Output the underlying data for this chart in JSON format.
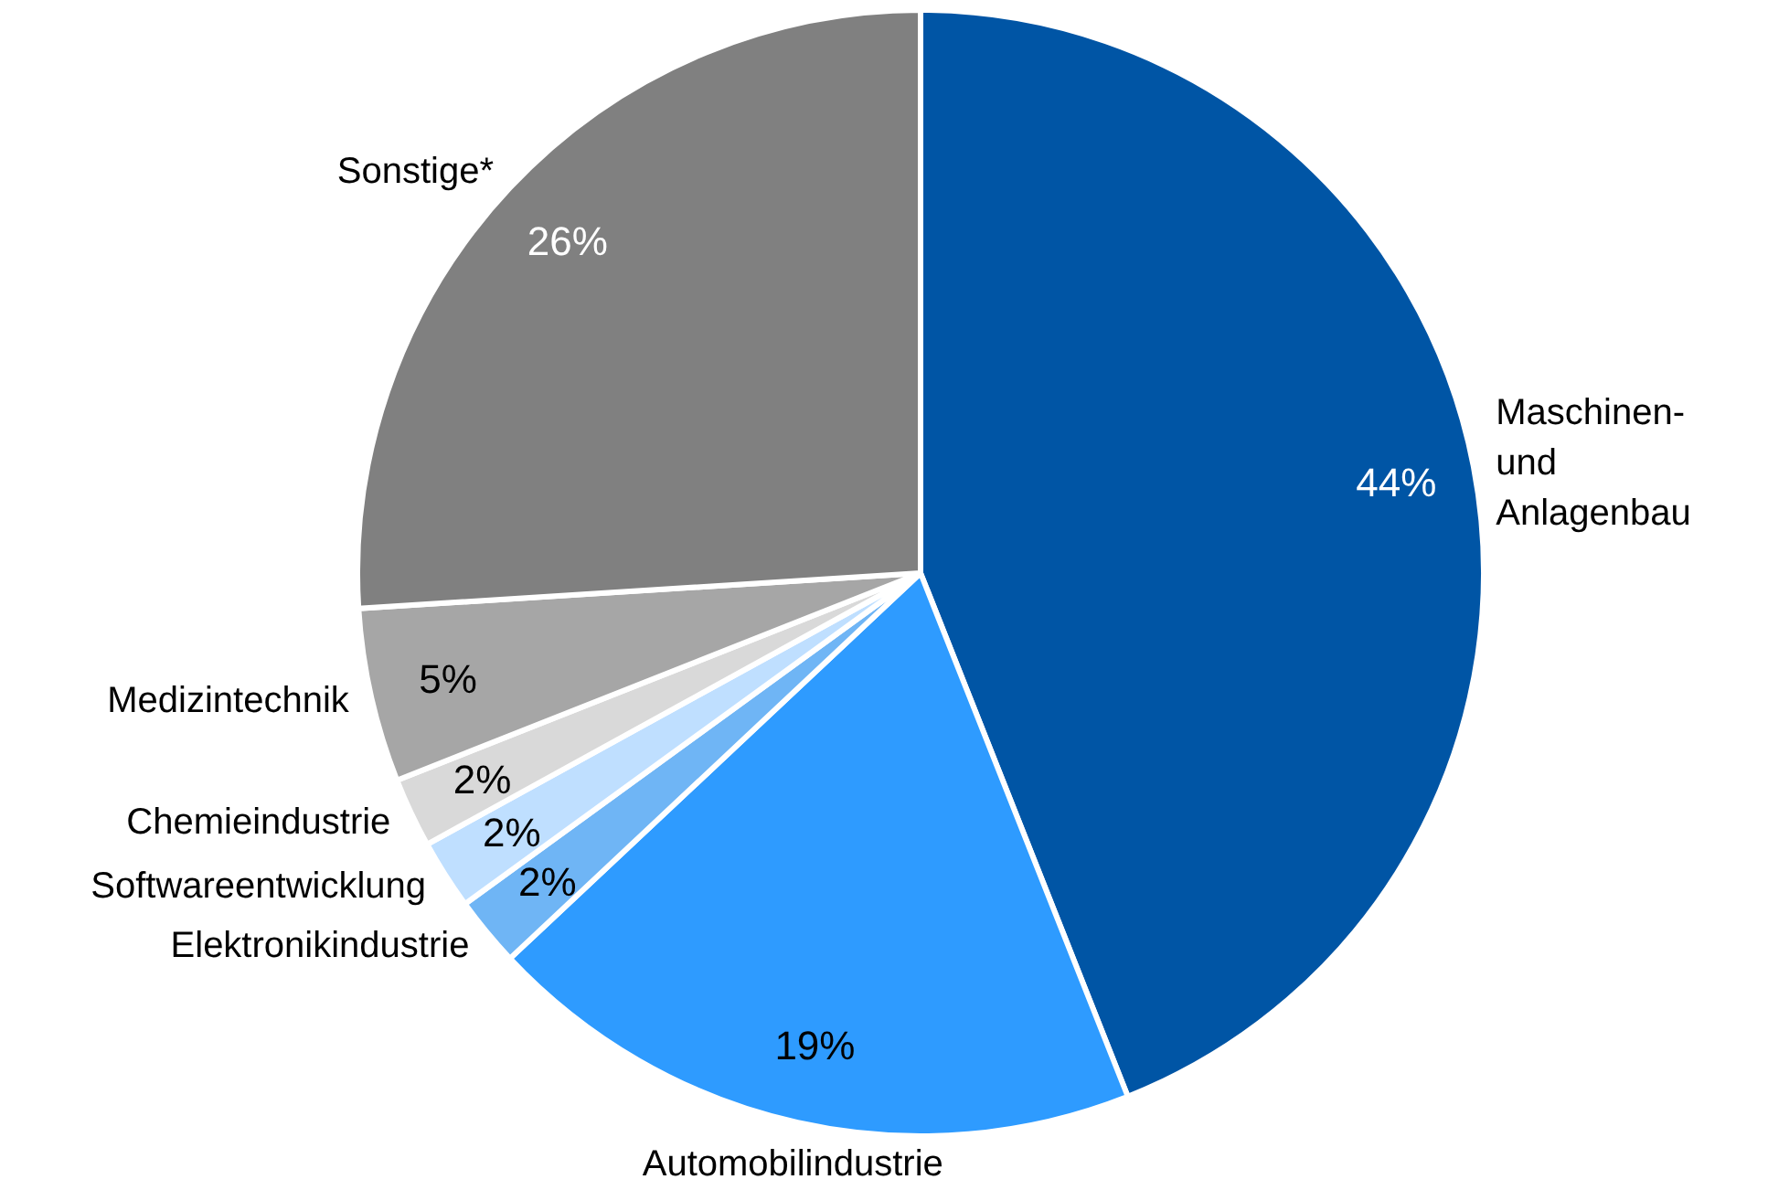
{
  "chart_data": {
    "type": "pie",
    "categories": [
      "Maschinen- und Anlagenbau",
      "Automobilindustrie",
      "Elektronikindustrie",
      "Softwareentwicklung",
      "Chemieindustrie",
      "Medizintechnik",
      "Sonstige*"
    ],
    "values": [
      44,
      19,
      2,
      2,
      2,
      5,
      26
    ],
    "colors": [
      "#0055a5",
      "#2e9bff",
      "#6fb5f5",
      "#bfdfff",
      "#d9d9d9",
      "#a6a6a6",
      "#808080"
    ],
    "value_labels": [
      "44%",
      "19%",
      "2%",
      "2%",
      "2%",
      "5%",
      "26%"
    ]
  }
}
